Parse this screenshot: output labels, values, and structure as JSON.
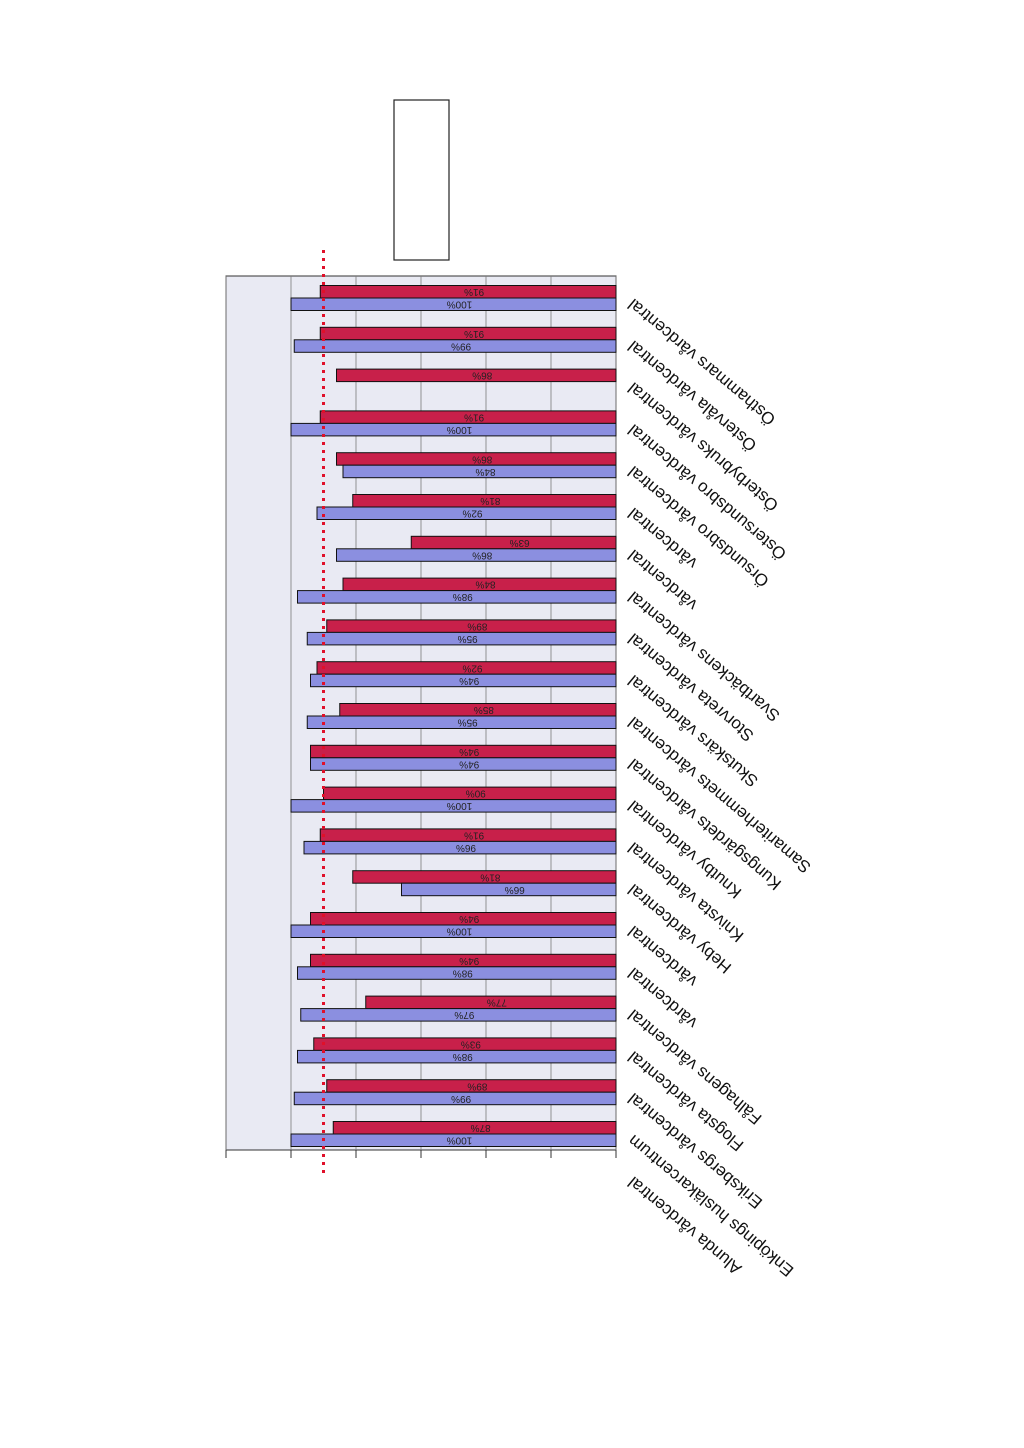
{
  "chart_data": {
    "type": "bar",
    "orientation": "horizontal",
    "rotation": "upside-down",
    "categories": [
      "Östhammars vårdcentral",
      "Östervåla vårdcentral",
      "Österbybruks vårdcentral",
      "Östersundsbro vårdcentral",
      "Örsundsbro vårdcentral",
      "vårdcentral",
      "vårdcentral",
      "Svartbäckens vårdcentral",
      "Storvreta vårdcentral",
      "Skutskärs vårdcentral",
      "Samariterhemmets vårdcentral",
      "Kungsgärdets vårdcentral",
      "Knutby vårdcentral",
      "Knivsta vårdcentral",
      "Heby vårdcentral",
      "vårdcentral",
      "vårdcentral",
      "Fålhagens vårdcentral",
      "Flogsta vårdcentral",
      "Eriksbergs vårdcentral",
      "Enköpings husläkarcentrum",
      "Alunda vårdcentral"
    ],
    "series": [
      {
        "color": "#c8204a",
        "values": [
          91,
          91,
          86,
          91,
          86,
          81,
          63,
          84,
          89,
          92,
          85,
          94,
          90,
          91,
          81,
          94,
          94,
          77,
          93,
          89,
          87,
          null
        ]
      },
      {
        "color": "#8b8fe0",
        "values": [
          100,
          99,
          null,
          100,
          84,
          92,
          86,
          98,
          95,
          94,
          95,
          94,
          100,
          96,
          66,
          100,
          98,
          97,
          98,
          99,
          100,
          null
        ]
      }
    ],
    "data_labels": {
      "red": [
        "91%",
        "91%",
        "86%",
        "91%",
        "86%",
        "81%",
        "63%",
        "84%",
        "89%",
        "92%",
        "85%",
        "94%",
        "90%",
        "91%",
        "81%",
        "94%",
        "94%",
        "77%",
        "93%",
        "89%",
        "87%",
        ""
      ],
      "blue": [
        "100%",
        "99%",
        "",
        "100%",
        "84%",
        "92%",
        "86%",
        "98%",
        "95%",
        "94%",
        "95%",
        "94%",
        "100%",
        "96%",
        "66%",
        "100%",
        "98%",
        "97%",
        "98%",
        "99%",
        "100%",
        ""
      ]
    },
    "target_line": 90,
    "xlim": [
      0,
      120
    ],
    "grid": true,
    "colors": {
      "plot_bg": "#e9eaf3",
      "grid": "#7a7a7a",
      "target": "#e0102a"
    }
  }
}
